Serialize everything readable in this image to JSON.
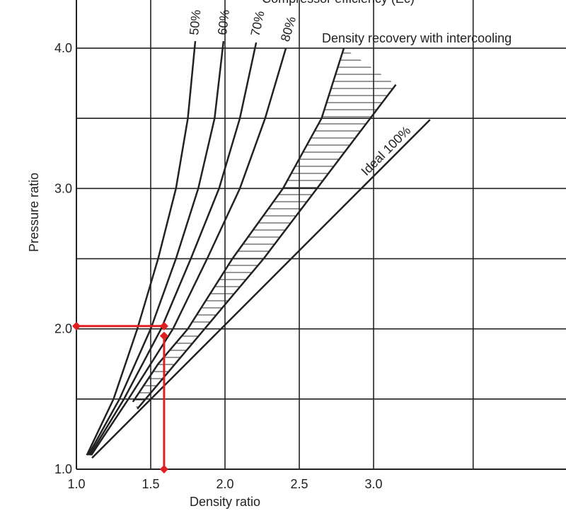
{
  "chart_data": {
    "type": "line",
    "title": "Compressor efficiency (Ec)",
    "xlabel": "Density ratio",
    "ylabel": "Pressure ratio",
    "xlim": [
      1.0,
      4.295
    ],
    "ylim": [
      1.0,
      4.343
    ],
    "xticks": [
      {
        "value": 1,
        "label": "1.0"
      },
      1.5,
      {
        "value": 2,
        "label": "2.0"
      },
      2.5,
      {
        "value": 3,
        "label": "3.0"
      }
    ],
    "yticks": [
      {
        "value": 1,
        "label": "1.0"
      },
      {
        "value": 2,
        "label": "2.0"
      },
      {
        "value": 3,
        "label": "3.0"
      },
      {
        "value": 4,
        "label": "4.0"
      }
    ],
    "xgrid": [
      3.67
    ],
    "ygrid": [
      1.5,
      2.5,
      3.5
    ],
    "grid": true,
    "series": [
      {
        "name": "50%",
        "color": "#222222",
        "x": [
          1.07,
          1.25,
          1.41,
          1.55,
          1.67,
          1.75,
          1.8
        ],
        "values": [
          1.1,
          1.5,
          2.0,
          2.5,
          3.0,
          3.5,
          4.05
        ]
      },
      {
        "name": "60%",
        "color": "#222222",
        "x": [
          1.08,
          1.29,
          1.5,
          1.67,
          1.82,
          1.93,
          1.99
        ],
        "values": [
          1.1,
          1.5,
          2.0,
          2.5,
          3.0,
          3.5,
          4.05
        ]
      },
      {
        "name": "70%",
        "color": "#222222",
        "x": [
          1.09,
          1.32,
          1.57,
          1.77,
          1.96,
          2.1,
          2.21
        ],
        "values": [
          1.1,
          1.5,
          2.0,
          2.5,
          3.0,
          3.5,
          4.04
        ]
      },
      {
        "name": "80%",
        "color": "#222222",
        "x": [
          1.1,
          1.35,
          1.65,
          1.88,
          2.1,
          2.27,
          2.41
        ],
        "values": [
          1.1,
          1.5,
          2.0,
          2.5,
          3.0,
          3.5,
          4.0
        ]
      },
      {
        "name": "Ideal 100%",
        "color": "#222222",
        "x": [
          1.105,
          3.38
        ],
        "values": [
          1.08,
          3.49
        ]
      }
    ],
    "band": {
      "name": "Density recovery with intercooling",
      "color": "#222222",
      "upper": {
        "x": [
          1.38,
          1.55,
          1.75,
          2.05,
          2.39,
          2.65,
          2.8
        ],
        "values": [
          1.48,
          1.75,
          2.0,
          2.5,
          3.0,
          3.5,
          4.0
        ]
      },
      "lower": {
        "x": [
          1.41,
          2.26,
          3.15
        ],
        "values": [
          1.43,
          2.5,
          3.74
        ]
      }
    },
    "annotations": [
      {
        "color": "#e02020",
        "x": [
          1.0,
          1.59
        ],
        "values": [
          2.02,
          2.02
        ]
      },
      {
        "color": "#e02020",
        "x": [
          1.59,
          1.59
        ],
        "values": [
          1.95,
          1.0
        ]
      }
    ]
  }
}
